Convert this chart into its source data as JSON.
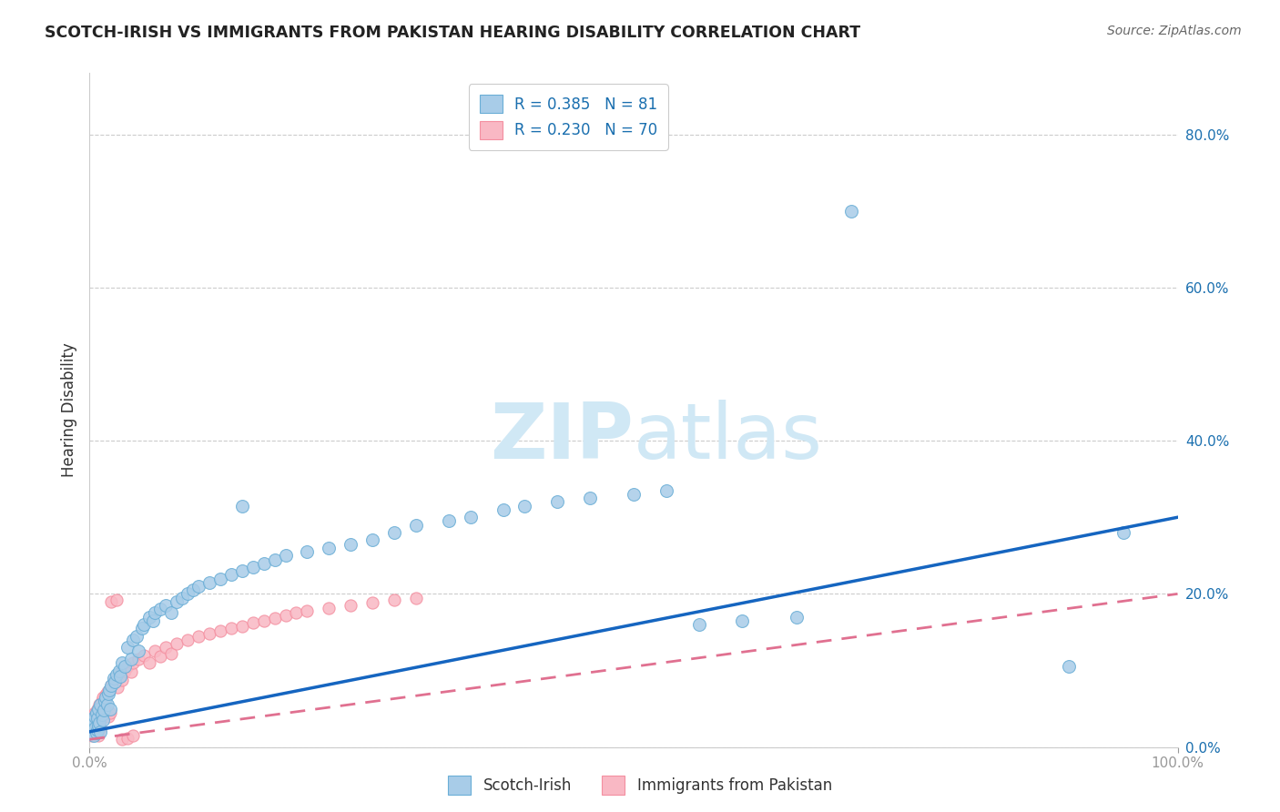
{
  "title": "SCOTCH-IRISH VS IMMIGRANTS FROM PAKISTAN HEARING DISABILITY CORRELATION CHART",
  "source": "Source: ZipAtlas.com",
  "ylabel": "Hearing Disability",
  "legend_label1": "Scotch-Irish",
  "legend_label2": "Immigrants from Pakistan",
  "R1": 0.385,
  "N1": 81,
  "R2": 0.23,
  "N2": 70,
  "color_blue": "#a8cce8",
  "color_pink": "#f9b8c4",
  "color_blue_edge": "#6aaed6",
  "color_pink_edge": "#f48fa0",
  "color_line_blue": "#1565c0",
  "color_line_pink": "#e07090",
  "watermark_color": "#d0e8f5",
  "background_color": "#ffffff",
  "grid_color": "#cccccc",
  "y_tick_values": [
    0.0,
    0.2,
    0.4,
    0.6,
    0.8
  ],
  "xlim": [
    0.0,
    1.0
  ],
  "ylim": [
    0.0,
    0.88
  ],
  "line1_x0": 0.0,
  "line1_y0": 0.02,
  "line1_x1": 1.0,
  "line1_y1": 0.3,
  "line2_x0": 0.0,
  "line2_y0": 0.01,
  "line2_x1": 1.0,
  "line2_y1": 0.2,
  "scotch_irish_x": [
    0.001,
    0.002,
    0.003,
    0.003,
    0.004,
    0.004,
    0.005,
    0.005,
    0.006,
    0.006,
    0.007,
    0.007,
    0.008,
    0.008,
    0.009,
    0.01,
    0.01,
    0.011,
    0.012,
    0.013,
    0.014,
    0.015,
    0.016,
    0.017,
    0.018,
    0.019,
    0.02,
    0.022,
    0.023,
    0.025,
    0.027,
    0.028,
    0.03,
    0.032,
    0.035,
    0.038,
    0.04,
    0.043,
    0.045,
    0.048,
    0.05,
    0.055,
    0.058,
    0.06,
    0.065,
    0.07,
    0.075,
    0.08,
    0.085,
    0.09,
    0.095,
    0.1,
    0.11,
    0.12,
    0.13,
    0.14,
    0.15,
    0.16,
    0.17,
    0.18,
    0.2,
    0.22,
    0.24,
    0.26,
    0.28,
    0.3,
    0.33,
    0.35,
    0.38,
    0.4,
    0.43,
    0.46,
    0.5,
    0.53,
    0.56,
    0.6,
    0.65,
    0.7,
    0.9,
    0.95,
    0.14
  ],
  "scotch_irish_y": [
    0.025,
    0.02,
    0.018,
    0.03,
    0.015,
    0.035,
    0.025,
    0.04,
    0.018,
    0.045,
    0.022,
    0.038,
    0.028,
    0.05,
    0.032,
    0.02,
    0.055,
    0.042,
    0.035,
    0.048,
    0.06,
    0.065,
    0.055,
    0.07,
    0.075,
    0.05,
    0.08,
    0.09,
    0.085,
    0.095,
    0.1,
    0.092,
    0.11,
    0.105,
    0.13,
    0.115,
    0.14,
    0.145,
    0.125,
    0.155,
    0.16,
    0.17,
    0.165,
    0.175,
    0.18,
    0.185,
    0.175,
    0.19,
    0.195,
    0.2,
    0.205,
    0.21,
    0.215,
    0.22,
    0.225,
    0.23,
    0.235,
    0.24,
    0.245,
    0.25,
    0.255,
    0.26,
    0.265,
    0.27,
    0.28,
    0.29,
    0.295,
    0.3,
    0.31,
    0.315,
    0.32,
    0.325,
    0.33,
    0.335,
    0.16,
    0.165,
    0.17,
    0.7,
    0.105,
    0.28,
    0.315
  ],
  "pakistan_x": [
    0.001,
    0.001,
    0.002,
    0.002,
    0.003,
    0.003,
    0.004,
    0.004,
    0.005,
    0.005,
    0.006,
    0.006,
    0.007,
    0.007,
    0.008,
    0.008,
    0.009,
    0.009,
    0.01,
    0.01,
    0.011,
    0.012,
    0.012,
    0.013,
    0.014,
    0.015,
    0.016,
    0.017,
    0.018,
    0.019,
    0.02,
    0.022,
    0.024,
    0.026,
    0.028,
    0.03,
    0.032,
    0.035,
    0.038,
    0.04,
    0.045,
    0.05,
    0.055,
    0.06,
    0.065,
    0.07,
    0.075,
    0.08,
    0.09,
    0.1,
    0.11,
    0.12,
    0.13,
    0.14,
    0.15,
    0.16,
    0.17,
    0.18,
    0.19,
    0.2,
    0.22,
    0.24,
    0.26,
    0.28,
    0.3,
    0.02,
    0.025,
    0.03,
    0.035,
    0.04
  ],
  "pakistan_y": [
    0.018,
    0.025,
    0.015,
    0.03,
    0.022,
    0.035,
    0.018,
    0.04,
    0.025,
    0.045,
    0.02,
    0.038,
    0.028,
    0.05,
    0.015,
    0.042,
    0.032,
    0.055,
    0.025,
    0.048,
    0.06,
    0.052,
    0.065,
    0.058,
    0.042,
    0.068,
    0.072,
    0.04,
    0.075,
    0.045,
    0.08,
    0.085,
    0.09,
    0.078,
    0.095,
    0.088,
    0.1,
    0.105,
    0.098,
    0.11,
    0.115,
    0.12,
    0.11,
    0.125,
    0.118,
    0.13,
    0.122,
    0.135,
    0.14,
    0.145,
    0.148,
    0.152,
    0.155,
    0.158,
    0.162,
    0.165,
    0.168,
    0.172,
    0.175,
    0.178,
    0.182,
    0.185,
    0.188,
    0.192,
    0.195,
    0.19,
    0.192,
    0.01,
    0.012,
    0.015
  ]
}
